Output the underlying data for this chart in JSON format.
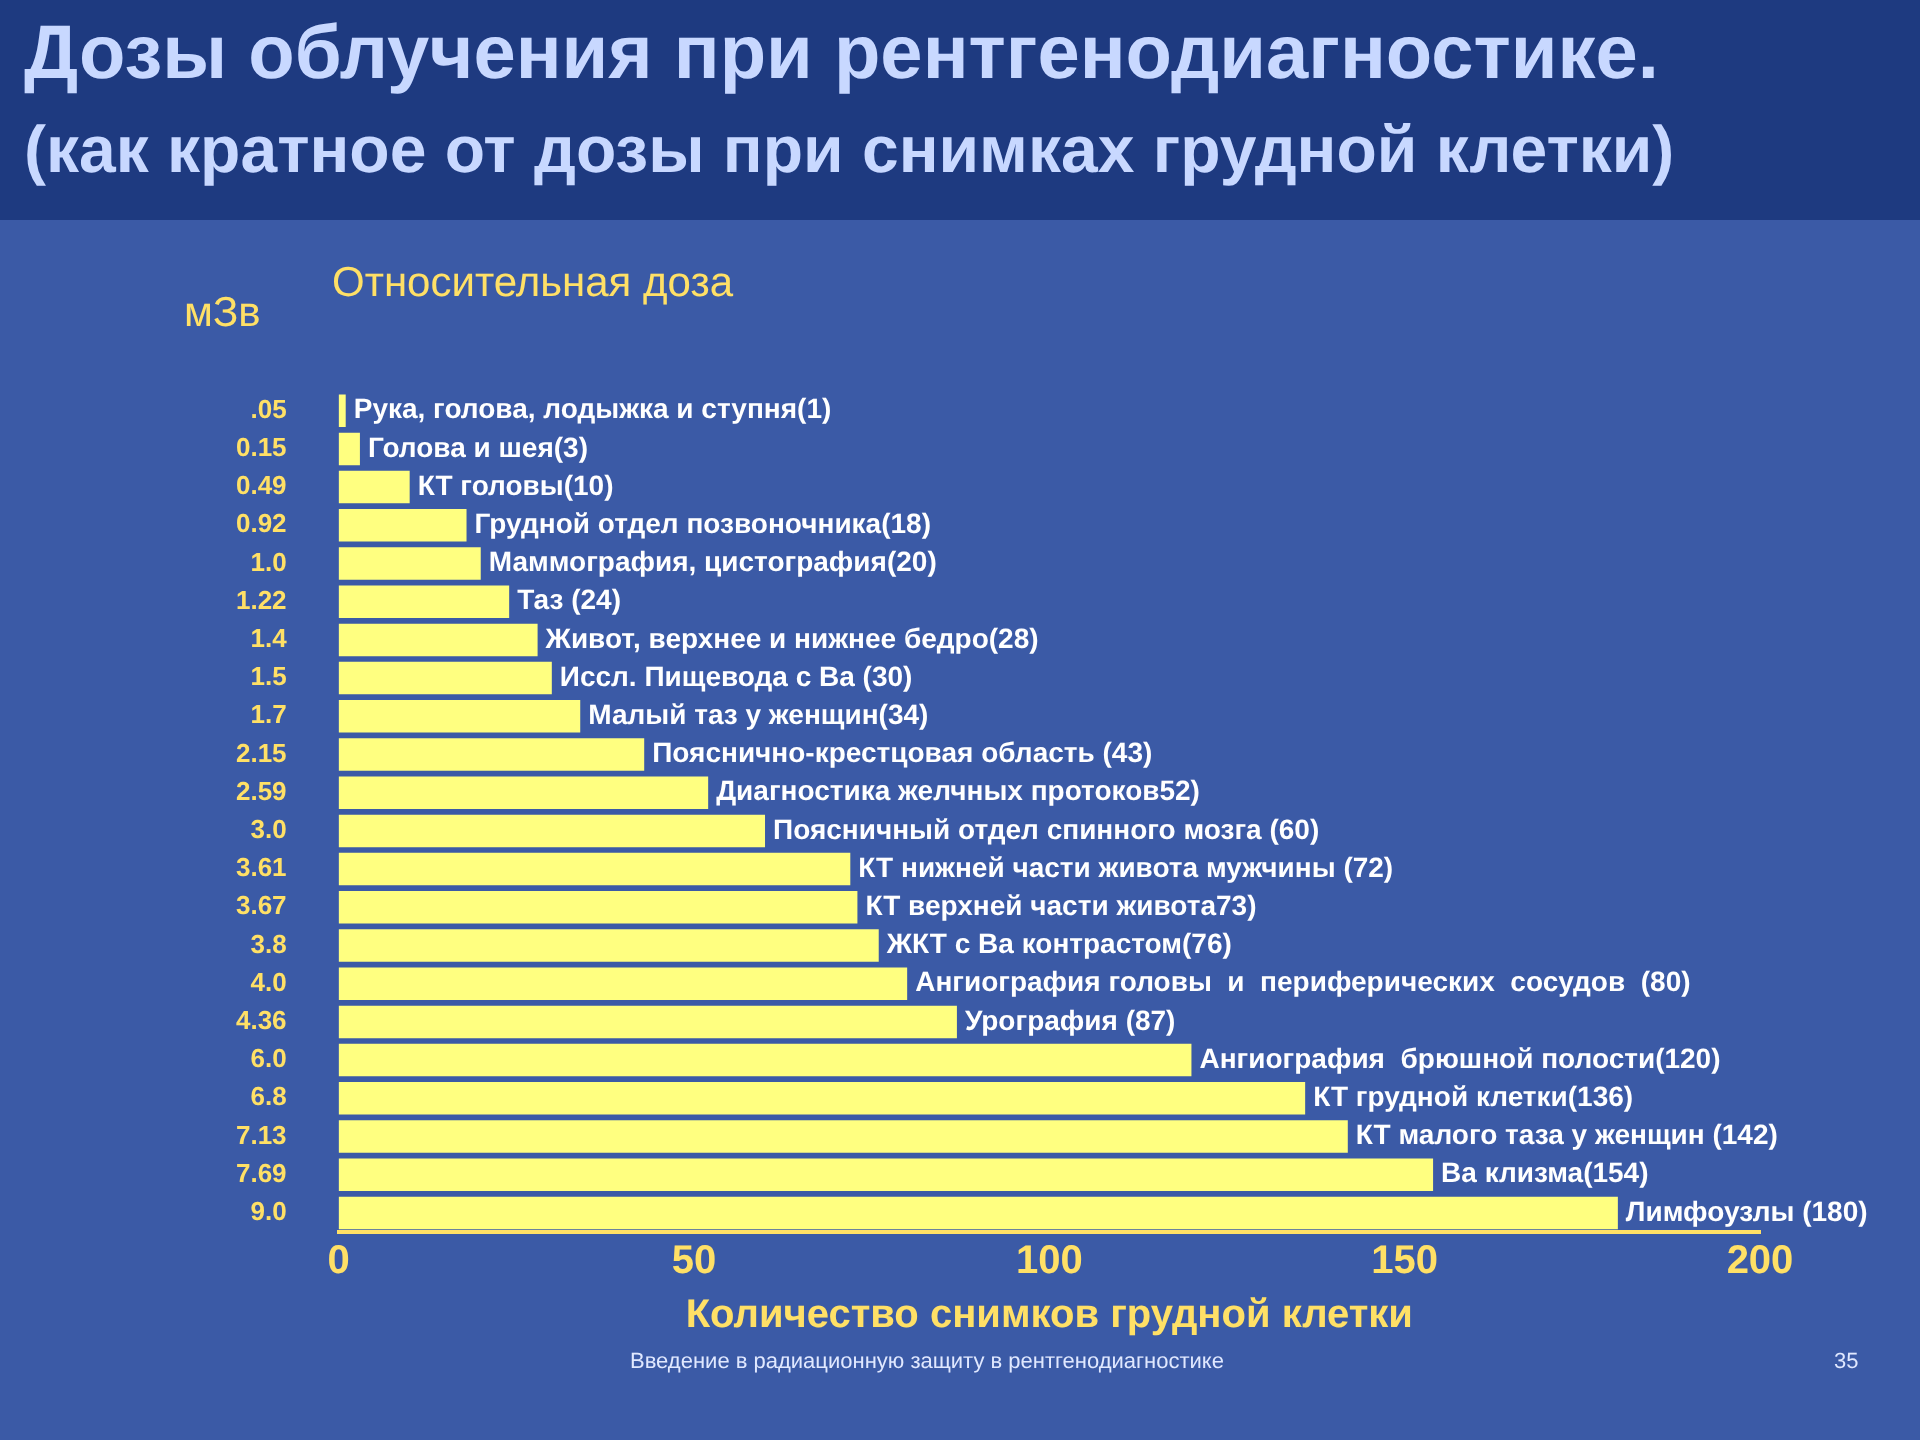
{
  "chart_data": {
    "type": "bar",
    "orientation": "horizontal",
    "title": "Дозы облучения при рентгенодиагностике.",
    "subtitle": "(как кратное от дозы при снимках грудной клетки)",
    "xlabel": "Количество снимков грудной клетки",
    "ylabel": "мЗв",
    "annotations": [
      "Относительная доза",
      "Введение в радиационную защиту в рентгенодиагностике",
      "35"
    ],
    "categories": [
      ".05",
      "0.15",
      "0.49",
      "0.92",
      "1.0",
      "1.22",
      "1.4",
      "1.5",
      "1.7",
      "2.15",
      "2.59",
      "3.0",
      "3.61",
      "3.67",
      "3.8",
      "4.0",
      "4.36",
      "6.0",
      "6.8",
      "7.13",
      "7.69",
      "9.0"
    ],
    "values": [
      1,
      3,
      10,
      18,
      20,
      24,
      28,
      30,
      34,
      43,
      52,
      60,
      72,
      73,
      76,
      80,
      87,
      120,
      136,
      142,
      154,
      180
    ],
    "value_labels": [
      "Рука, голова, лодыжка и ступня(1)",
      "Голова и шея(3)",
      "КТ головы(10)",
      "Грудной отдел позвоночника(18)",
      "Маммография, цистография(20)",
      "Таз (24)",
      "Живот, верхнее и нижнее бедро(28)",
      "Иссл. Пищевода с Ва (30)",
      "Малый таз у женщин(34)",
      "Пояснично-крестцовая область (43)",
      "Диагностика желчных протоков52)",
      "Поясничный отдел спинного мозга (60)",
      "КТ нижней части живота мужчины (72)",
      "КТ верхней части живота73)",
      "ЖКТ с Ва контрастом(76)",
      "Ангиография головы  и  периферических  сосудов  (80)",
      "Урография (87)",
      "Ангиография  брюшной полости(120)",
      "КТ грудной клетки(136)",
      "КТ малого таза у женщин (142)",
      "Ва клизма(154)",
      "Лимфоузлы (180)"
    ],
    "color": "#ffff80",
    "xlim": [
      0,
      200
    ],
    "xticks": [
      0,
      50,
      100,
      150,
      200
    ],
    "grid": false,
    "legend": false
  }
}
